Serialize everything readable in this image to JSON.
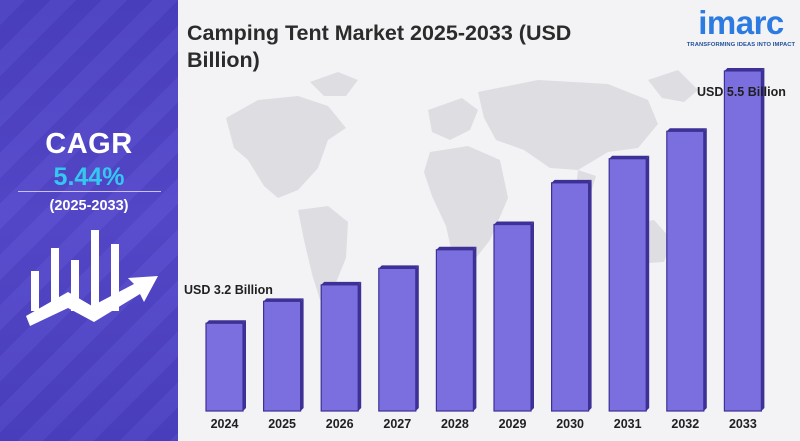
{
  "title": "Camping Tent Market 2025-2033 (USD Billion)",
  "logo": {
    "name": "imarc",
    "tagline": "TRANSFORMING IDEAS INTO IMPACT",
    "color": "#2b7be0"
  },
  "cagr": {
    "label": "CAGR",
    "value": "5.44%",
    "period": "(2025-2033)",
    "icon": "growth-chart-arrow-icon"
  },
  "colors": {
    "panel": "#4a3fc0",
    "bar": "#7b6fe0",
    "bar_edge": "#3d3196",
    "cagr_value": "#34c8f0"
  },
  "chart_data": {
    "type": "bar",
    "title": "Camping Tent Market 2025-2033 (USD Billion)",
    "categories": [
      "2024",
      "2025",
      "2026",
      "2027",
      "2028",
      "2029",
      "2030",
      "2031",
      "2032",
      "2033"
    ],
    "values": [
      3.2,
      3.4,
      3.55,
      3.7,
      3.87,
      4.1,
      4.48,
      4.7,
      4.95,
      5.5
    ],
    "annotations": [
      {
        "category": "2024",
        "text": "USD 3.2 Billion"
      },
      {
        "category": "2033",
        "text": "USD 5.5 Billion"
      }
    ],
    "ylim": [
      2.4,
      5.6
    ],
    "grid": false,
    "legend": "none"
  }
}
